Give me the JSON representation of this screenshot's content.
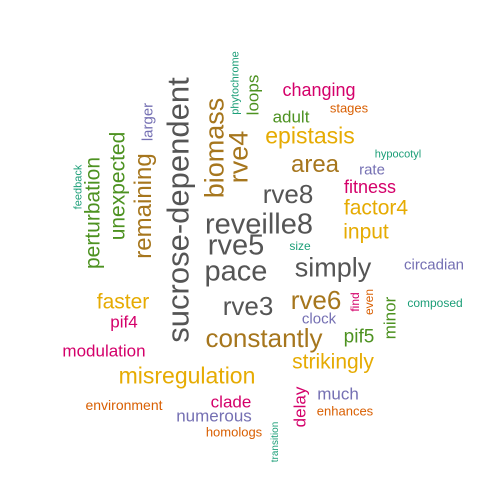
{
  "palette": {
    "dark_gray": "#555555",
    "olive": "#b8860b",
    "orange": "#d95f02",
    "green": "#4d9221",
    "teal": "#1b9e77",
    "purple": "#7570b3",
    "magenta": "#d4006a",
    "brown": "#a6761d",
    "gold": "#e6ab02"
  },
  "words": [
    {
      "text": "sucrose-dependent",
      "color": "dark_gray"
    },
    {
      "text": "reveille8",
      "color": "dark_gray"
    },
    {
      "text": "pace",
      "color": "dark_gray"
    },
    {
      "text": "rve5",
      "color": "dark_gray"
    },
    {
      "text": "simply",
      "color": "dark_gray"
    },
    {
      "text": "rve8",
      "color": "dark_gray"
    },
    {
      "text": "rve3",
      "color": "dark_gray"
    },
    {
      "text": "rve6",
      "color": "brown"
    },
    {
      "text": "rve4",
      "color": "brown"
    },
    {
      "text": "constantly",
      "color": "brown"
    },
    {
      "text": "area",
      "color": "brown"
    },
    {
      "text": "biomass",
      "color": "brown"
    },
    {
      "text": "remaining",
      "color": "brown"
    },
    {
      "text": "misregulation",
      "color": "gold"
    },
    {
      "text": "epistasis",
      "color": "gold"
    },
    {
      "text": "factor4",
      "color": "gold"
    },
    {
      "text": "input",
      "color": "gold"
    },
    {
      "text": "faster",
      "color": "gold"
    },
    {
      "text": "strikingly",
      "color": "gold"
    },
    {
      "text": "perturbation",
      "color": "green"
    },
    {
      "text": "unexpected",
      "color": "green"
    },
    {
      "text": "loops",
      "color": "green"
    },
    {
      "text": "adult",
      "color": "green"
    },
    {
      "text": "pif5",
      "color": "green"
    },
    {
      "text": "minor",
      "color": "green"
    },
    {
      "text": "changing",
      "color": "magenta"
    },
    {
      "text": "fitness",
      "color": "magenta"
    },
    {
      "text": "pif4",
      "color": "magenta"
    },
    {
      "text": "modulation",
      "color": "magenta"
    },
    {
      "text": "clade",
      "color": "magenta"
    },
    {
      "text": "delay",
      "color": "magenta"
    },
    {
      "text": "find",
      "color": "magenta"
    },
    {
      "text": "larger",
      "color": "purple"
    },
    {
      "text": "rate",
      "color": "purple"
    },
    {
      "text": "circadian",
      "color": "purple"
    },
    {
      "text": "clock",
      "color": "purple"
    },
    {
      "text": "much",
      "color": "purple"
    },
    {
      "text": "numerous",
      "color": "purple"
    },
    {
      "text": "stages",
      "color": "orange"
    },
    {
      "text": "even",
      "color": "orange"
    },
    {
      "text": "environment",
      "color": "orange"
    },
    {
      "text": "enhances",
      "color": "orange"
    },
    {
      "text": "homologs",
      "color": "orange"
    },
    {
      "text": "phytochrome",
      "color": "teal"
    },
    {
      "text": "hypocotyl",
      "color": "teal"
    },
    {
      "text": "feedback",
      "color": "teal"
    },
    {
      "text": "size",
      "color": "teal"
    },
    {
      "text": "composed",
      "color": "teal"
    },
    {
      "text": "transition",
      "color": "teal"
    }
  ]
}
